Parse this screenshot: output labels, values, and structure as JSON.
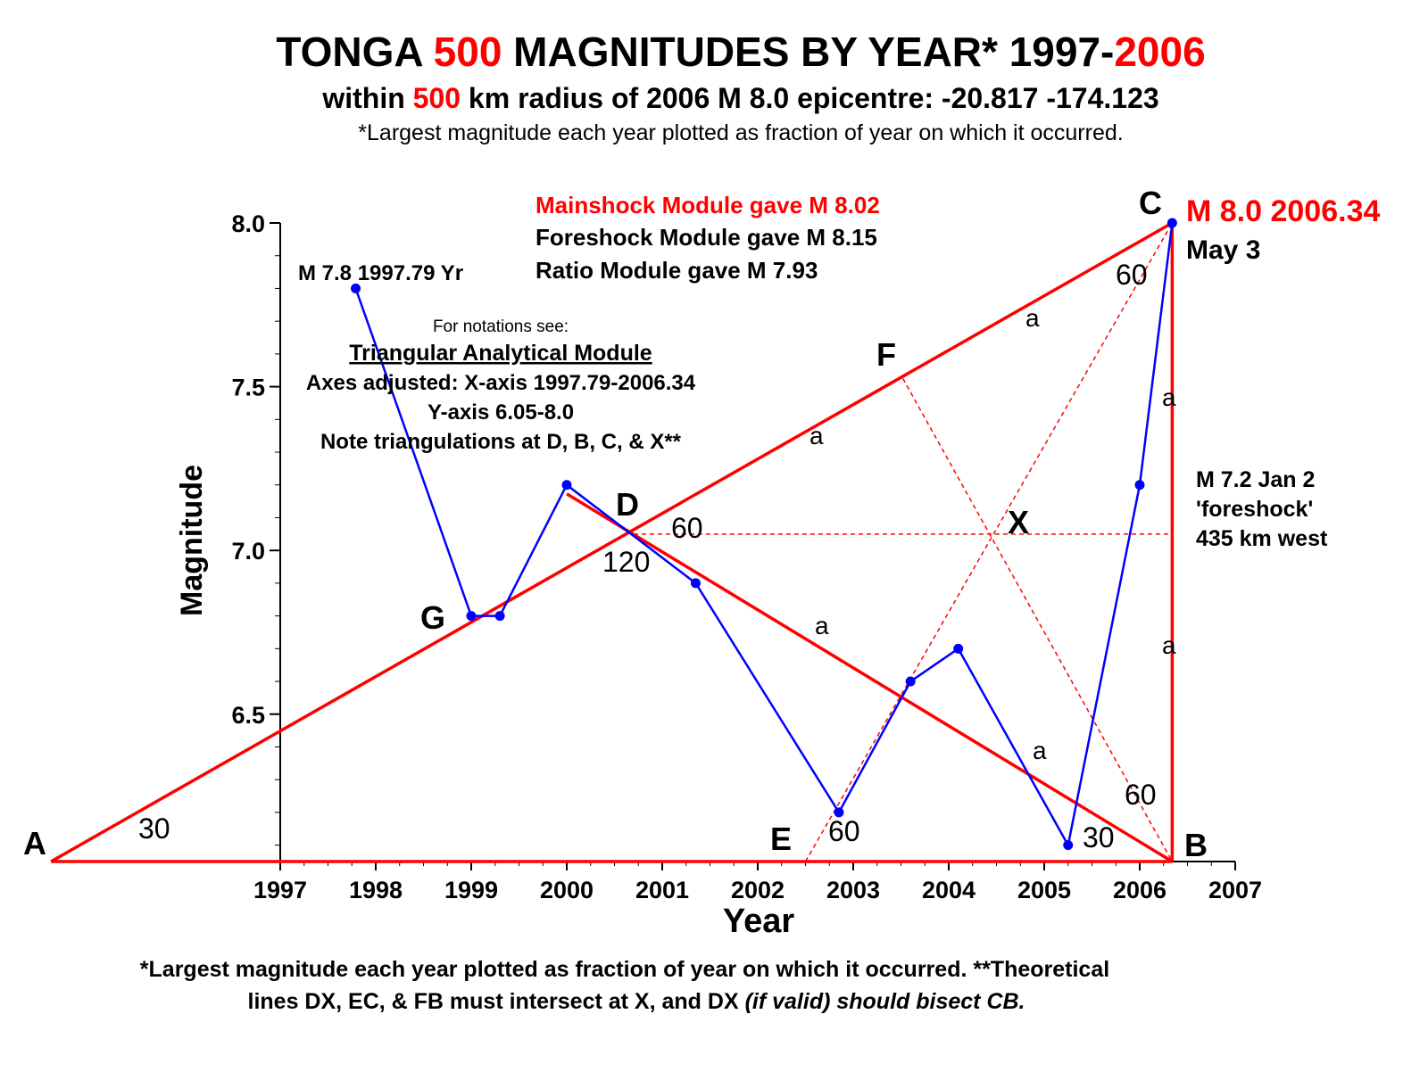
{
  "title": {
    "part1": "TONGA ",
    "part2": "500",
    "part3": " MAGNITUDES BY YEAR* 1997-",
    "part4": "2006"
  },
  "subtitle": {
    "part1": "within ",
    "part2": "500",
    "part3": " km radius of 2006 M 8.0 epicentre: -20.817 -174.123"
  },
  "subtitle2": "*Largest magnitude each year plotted as fraction of year on which it occurred.",
  "footnote": {
    "line1": "*Largest magnitude each year plotted as fraction of year on which it occurred. **Theoretical",
    "line2a": "lines DX, EC, & FB must intersect at X, and DX ",
    "line2b": "(if valid) should bisect CB."
  },
  "modules": {
    "mainshock": "Mainshock Module gave M 8.02",
    "foreshock": "Foreshock Module gave M 8.15",
    "ratio": "Ratio Module gave M 7.93"
  },
  "notes": {
    "line1": "For notations see:",
    "line2": "Triangular Analytical Module",
    "line3": "Axes adjusted: X-axis 1997.79-2006.34",
    "line4": "Y-axis 6.05-8.0",
    "line5": "Note triangulations at D, B, C, & X**"
  },
  "annotations": {
    "first_quake": "M 7.8 1997.79 Yr",
    "mainshock_label": "M 8.0 2006.34",
    "mainshock_date": "May 3",
    "foreshock_line1": "M 7.2 Jan 2",
    "foreshock_line2": "'foreshock'",
    "foreshock_line3": "435 km west"
  },
  "points": {
    "A": "A",
    "B": "B",
    "C": "C",
    "D": "D",
    "E": "E",
    "F": "F",
    "G": "G",
    "X": "X"
  },
  "angles": {
    "a30": "30",
    "b30": "30",
    "b60": "60",
    "c60": "60",
    "d60": "60",
    "d120": "120",
    "e60": "60"
  },
  "side_label": "a",
  "colors": {
    "series": "#0000ff",
    "construction": "#ff0000",
    "text": "#000000"
  },
  "chart_data": {
    "type": "line",
    "xlabel": "Year",
    "ylabel": "Magnitude",
    "xlim": [
      1997,
      2007
    ],
    "ylim": [
      6.05,
      8.0
    ],
    "xticks": [
      1997,
      1998,
      1999,
      2000,
      2001,
      2002,
      2003,
      2004,
      2005,
      2006,
      2007
    ],
    "yticks": [
      6.5,
      7.0,
      7.5,
      8.0
    ],
    "yticklabels": [
      "6.5",
      "7.0",
      "7.5",
      "8.0"
    ],
    "grid": false,
    "series": [
      {
        "x": [
          1997.79,
          1999.0,
          1999.3,
          2000.0,
          2001.35,
          2002.85,
          2003.6,
          2004.1,
          2005.25,
          2006.0,
          2006.34
        ],
        "y": [
          7.8,
          6.8,
          6.8,
          7.2,
          6.9,
          6.2,
          6.6,
          6.7,
          6.1,
          7.2,
          8.0
        ]
      }
    ],
    "construction_points": {
      "A": [
        1994.6,
        6.05
      ],
      "B": [
        2006.34,
        6.05
      ],
      "C": [
        2006.34,
        8.0
      ],
      "D": [
        2000.7,
        7.05
      ],
      "E": [
        2002.5,
        6.05
      ],
      "F": [
        2003.52,
        7.525
      ],
      "G": [
        1999.1,
        6.8
      ],
      "X": [
        2004.5,
        7.05
      ]
    }
  }
}
